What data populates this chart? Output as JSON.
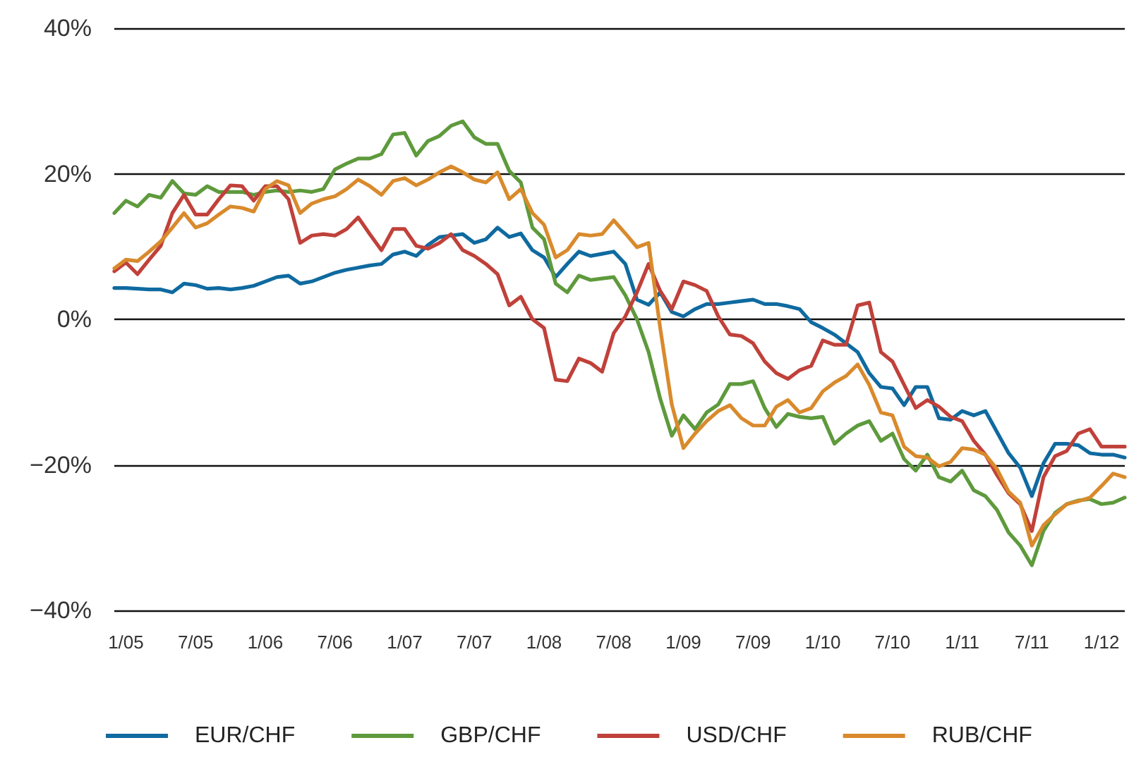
{
  "chart_data": {
    "type": "line",
    "categories": [
      null,
      "1/05",
      null,
      null,
      null,
      null,
      null,
      "7/05",
      null,
      null,
      null,
      null,
      null,
      "1/06",
      null,
      null,
      null,
      null,
      null,
      "7/06",
      null,
      null,
      null,
      null,
      null,
      "1/07",
      null,
      null,
      null,
      null,
      null,
      "7/07",
      null,
      null,
      null,
      null,
      null,
      "1/08",
      null,
      null,
      null,
      null,
      null,
      "7/08",
      null,
      null,
      null,
      null,
      null,
      "1/09",
      null,
      null,
      null,
      null,
      null,
      "7/09",
      null,
      null,
      null,
      null,
      null,
      "1/10",
      null,
      null,
      null,
      null,
      null,
      "7/10",
      null,
      null,
      null,
      null,
      null,
      "1/11",
      null,
      null,
      null,
      null,
      null,
      "7/11",
      null,
      null,
      null,
      null,
      null,
      "1/12",
      null,
      null
    ],
    "series": [
      {
        "name": "EUR/CHF",
        "color": "#0f6aa0",
        "values": [
          4.3,
          4.3,
          4.2,
          4.1,
          4.1,
          3.7,
          4.9,
          4.7,
          4.2,
          4.3,
          4.1,
          4.3,
          4.6,
          5.2,
          5.8,
          6.0,
          4.9,
          5.2,
          5.8,
          6.4,
          6.8,
          7.1,
          7.4,
          7.6,
          8.9,
          9.3,
          8.7,
          10.2,
          11.3,
          11.5,
          11.7,
          10.5,
          11,
          12.6,
          11.3,
          11.8,
          9.5,
          8.5,
          5.8,
          7.6,
          9.3,
          8.7,
          9.0,
          9.3,
          7.6,
          2.7,
          2,
          3.7,
          1,
          0.4,
          1.4,
          2.1,
          2.1,
          2.3,
          2.5,
          2.7,
          2.1,
          2.1,
          1.8,
          1.4,
          -0.4,
          -1.2,
          -2.1,
          -3.3,
          -4.5,
          -7.4,
          -9.3,
          -9.5,
          -11.8,
          -9.3,
          -9.3,
          -13.6,
          -13.8,
          -12.6,
          -13.2,
          -12.6,
          -15.5,
          -18.4,
          -20.4,
          -24.3,
          -19.8,
          -17.1,
          -17.1,
          -17.3,
          -18.4,
          -18.6,
          -18.6,
          -19
        ]
      },
      {
        "name": "GBP/CHF",
        "color": "#5e9a3c",
        "values": [
          14.6,
          16.3,
          15.5,
          17.1,
          16.7,
          19,
          17.3,
          17.1,
          18.3,
          17.5,
          17.5,
          17.5,
          17.1,
          17.5,
          17.7,
          17.5,
          17.7,
          17.5,
          17.9,
          20.6,
          21.4,
          22.1,
          22.1,
          22.7,
          25.4,
          25.6,
          22.5,
          24.5,
          25.2,
          26.6,
          27.2,
          25,
          24.1,
          24.1,
          20.4,
          18.8,
          12.6,
          11,
          4.9,
          3.7,
          6,
          5.4,
          5.6,
          5.8,
          3.3,
          0,
          -4.5,
          -10.9,
          -16,
          -13.2,
          -15.1,
          -12.8,
          -11.7,
          -8.9,
          -8.9,
          -8.5,
          -12.2,
          -14.8,
          -13,
          -13.4,
          -13.6,
          -13.4,
          -17.1,
          -15.7,
          -14.6,
          -14,
          -16.7,
          -15.7,
          -19.2,
          -20.8,
          -18.6,
          -21.7,
          -22.3,
          -20.8,
          -23.5,
          -24.3,
          -26.2,
          -29.3,
          -31.1,
          -33.8,
          -29.1,
          -26.6,
          -25.4,
          -24.9,
          -24.7,
          -25.4,
          -25.2,
          -24.5
        ]
      },
      {
        "name": "USD/CHF",
        "color": "#c0413a",
        "values": [
          6.6,
          7.8,
          6.2,
          8.2,
          10.1,
          14.6,
          17.1,
          14.4,
          14.4,
          16.5,
          18.4,
          18.3,
          16.3,
          18.3,
          18.3,
          16.5,
          10.5,
          11.5,
          11.7,
          11.5,
          12.4,
          14,
          11.7,
          9.5,
          12.4,
          12.4,
          10.1,
          9.7,
          10.5,
          11.7,
          9.5,
          8.7,
          7.6,
          6.2,
          1.9,
          3.1,
          0,
          -1.2,
          -8.3,
          -8.5,
          -5.4,
          -6,
          -7.2,
          -1.9,
          0.4,
          3.7,
          7.6,
          3.9,
          1.4,
          5.2,
          4.7,
          3.9,
          0.4,
          -2.1,
          -2.3,
          -3.3,
          -5.8,
          -7.4,
          -8.2,
          -7,
          -6.4,
          -2.9,
          -3.5,
          -3.5,
          1.9,
          2.3,
          -4.5,
          -5.8,
          -9,
          -12.2,
          -11.1,
          -12,
          -13.4,
          -14,
          -16.7,
          -18.6,
          -21.4,
          -23.9,
          -25.4,
          -29.1,
          -21.7,
          -18.8,
          -18.1,
          -15.7,
          -15.1,
          -17.5,
          -17.5,
          -17.5
        ]
      },
      {
        "name": "RUB/CHF",
        "color": "#d98a2c",
        "values": [
          7,
          8.2,
          8,
          9.3,
          10.7,
          12.6,
          14.6,
          12.6,
          13.2,
          14.4,
          15.5,
          15.3,
          14.8,
          17.9,
          19,
          18.4,
          14.6,
          15.9,
          16.5,
          16.9,
          17.9,
          19.2,
          18.3,
          17.1,
          19,
          19.4,
          18.4,
          19.2,
          20.2,
          21,
          20.2,
          19.2,
          18.8,
          20.2,
          16.5,
          17.9,
          14.6,
          13,
          8.5,
          9.5,
          11.7,
          11.5,
          11.7,
          13.6,
          11.8,
          9.9,
          10.5,
          -1.2,
          -11.7,
          -17.7,
          -15.7,
          -14,
          -12.6,
          -11.8,
          -13.6,
          -14.6,
          -14.6,
          -12,
          -11.1,
          -12.8,
          -12.2,
          -9.9,
          -8.7,
          -7.8,
          -6.2,
          -9,
          -12.8,
          -13.2,
          -17.5,
          -18.8,
          -19,
          -20.2,
          -19.6,
          -17.7,
          -17.9,
          -18.6,
          -20.6,
          -23.7,
          -25.2,
          -31.1,
          -28.3,
          -26.8,
          -25.4,
          -25,
          -24.5,
          -22.9,
          -21.2,
          -21.7
        ]
      }
    ],
    "ylim": [
      -40,
      40
    ],
    "yticks": [
      {
        "value": -40,
        "label": "−40%"
      },
      {
        "value": -20,
        "label": "−20%"
      },
      {
        "value": 0,
        "label": "0%"
      },
      {
        "value": 20,
        "label": "20%"
      },
      {
        "value": 40,
        "label": "40%"
      }
    ],
    "grid": "y",
    "legend": "bottom",
    "marker": "none",
    "line_style": "solid"
  }
}
